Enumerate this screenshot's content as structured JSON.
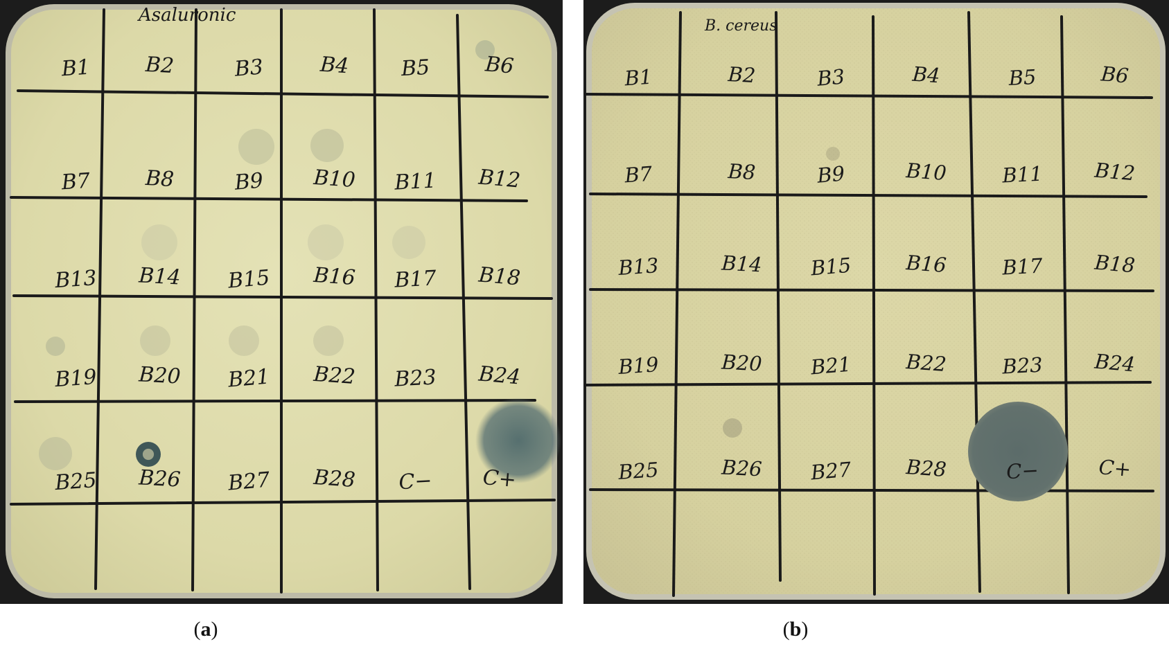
{
  "colors": {
    "frame": "#1c1c1c",
    "agar": "#dedbaa",
    "agar_b": "#d9d4a3",
    "rim": "#c9c7b8",
    "marker": "#1a1a1a",
    "zone": "#5e6d6b"
  },
  "panels": [
    {
      "id": "a",
      "caption": "a",
      "plate_title": "Asaluronic",
      "rows": [
        [
          "B1",
          "B2",
          "B3",
          "B4",
          "B5",
          "B6"
        ],
        [
          "B7",
          "B8",
          "B9",
          "B10",
          "B11",
          "B12"
        ],
        [
          "B13",
          "B14",
          "B15",
          "B16",
          "B17",
          "B18"
        ],
        [
          "B19",
          "B20",
          "B21",
          "B22",
          "B23",
          "B24"
        ],
        [
          "B25",
          "B26",
          "B27",
          "B28",
          "C−",
          "C+"
        ]
      ]
    },
    {
      "id": "b",
      "caption": "b",
      "plate_title": "B. cereus",
      "rows": [
        [
          "B1",
          "B2",
          "B3",
          "B4",
          "B5",
          "B6"
        ],
        [
          "B7",
          "B8",
          "B9",
          "B10",
          "B11",
          "B12"
        ],
        [
          "B13",
          "B14",
          "B15",
          "B16",
          "B17",
          "B18"
        ],
        [
          "B19",
          "B20",
          "B21",
          "B22",
          "B23",
          "B24"
        ],
        [
          "B25",
          "B26",
          "B27",
          "B28",
          "C−",
          "C+"
        ]
      ]
    }
  ]
}
